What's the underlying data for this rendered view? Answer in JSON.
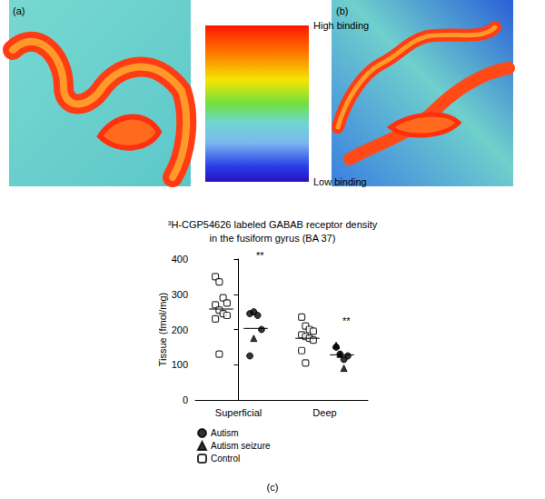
{
  "chart_data": {
    "type": "scatter",
    "title": "³H-CGP54626 labeled GABAB receptor density\nin the fusiform gyrus (BA 37)",
    "panel_label": "(c)",
    "y_label": "Tissue (fmol/mg)",
    "categories": [
      "Superficial",
      "Deep"
    ],
    "series": [
      {
        "name": "Autism",
        "marker": "circle",
        "color": "#000000",
        "values": [
          [
            245,
            250,
            240,
            200,
            125
          ],
          [
            150,
            130,
            115,
            125
          ]
        ],
        "means": [
          203,
          128
        ]
      },
      {
        "name": "Autism seizure",
        "marker": "triangle",
        "color": "#000000",
        "values": [
          [
            175
          ],
          [
            155,
            130,
            90
          ]
        ]
      },
      {
        "name": "Control",
        "marker": "square-open",
        "color": "#000000",
        "values": [
          [
            350,
            335,
            290,
            275,
            270,
            255,
            245,
            240,
            230,
            130
          ],
          [
            235,
            210,
            200,
            195,
            185,
            180,
            175,
            170,
            140,
            105
          ]
        ],
        "means": [
          258,
          175
        ]
      }
    ],
    "ylim": [
      0,
      400
    ],
    "yticks": [
      0,
      100,
      200,
      300,
      400
    ],
    "grid": false,
    "legend": "bottom",
    "annotations": [
      {
        "text": "**",
        "category": "Superficial",
        "y": 410
      },
      {
        "text": "**",
        "category": "Deep",
        "y": 225
      }
    ]
  },
  "images": {
    "panels": [
      {
        "label": "(a)"
      },
      {
        "label": "(b)"
      }
    ],
    "color_bar": {
      "high_label": "High binding",
      "low_label": "Low binding"
    }
  }
}
